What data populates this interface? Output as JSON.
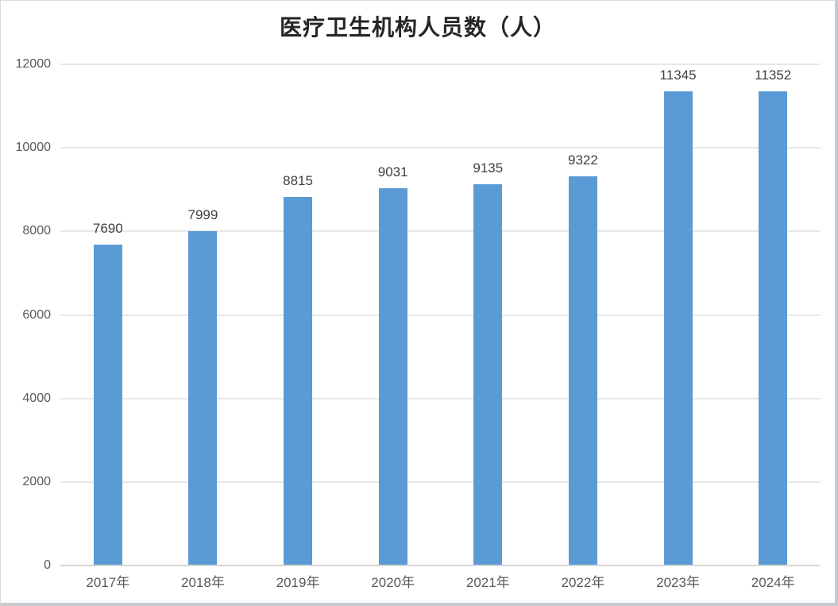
{
  "chart_data": {
    "type": "bar",
    "title": "医疗卫生机构人员数（人）",
    "categories": [
      "2017年",
      "2018年",
      "2019年",
      "2020年",
      "2021年",
      "2022年",
      "2023年",
      "2024年"
    ],
    "values": [
      7690,
      7999,
      8815,
      9031,
      9135,
      9322,
      11345,
      11352
    ],
    "data_labels": [
      7690,
      7999,
      8815,
      9031,
      9135,
      9322,
      11345,
      11352
    ],
    "xlabel": "",
    "ylabel": "",
    "ylim": [
      0,
      12000
    ],
    "ytick_step": 2000,
    "ytick_labels": [
      "0",
      "2000",
      "4000",
      "6000",
      "8000",
      "10000",
      "12000"
    ],
    "grid": true,
    "legend_position": "none"
  },
  "colors": {
    "bar": "#5B9BD5",
    "gridline": "#e7e7e7",
    "axis_line": "#d6d6d6",
    "title_text": "#262626",
    "tick_text": "#595959",
    "value_label_text": "#404040",
    "frame_border": "#c7cbce",
    "background": "#ffffff"
  }
}
